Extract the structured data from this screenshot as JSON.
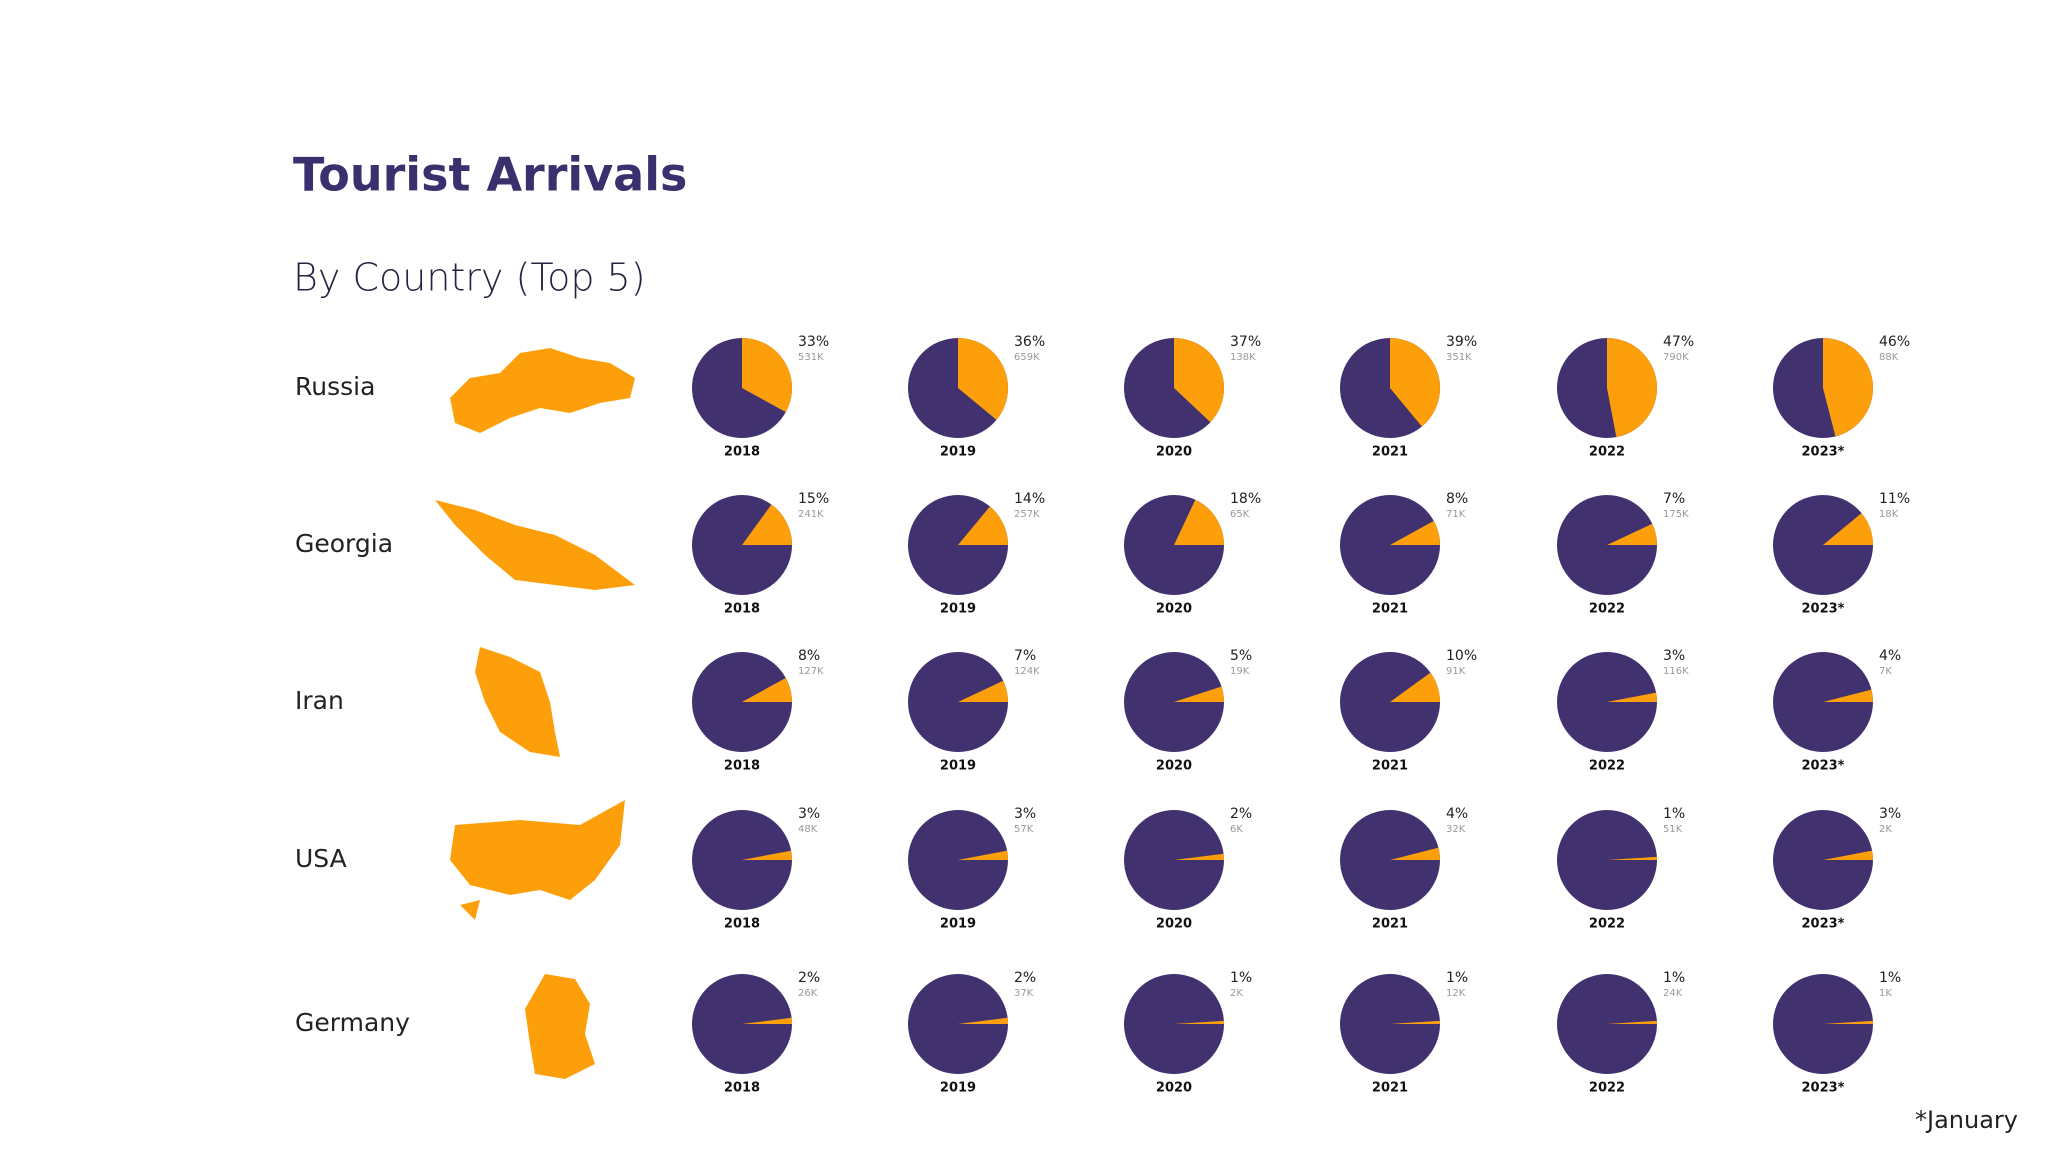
{
  "title": "Tourist Arrivals",
  "subtitle": "By Country (Top 5)",
  "footnote": "*January",
  "chart_data": [
    {
      "type": "pie",
      "name": "Russia",
      "categories": [
        "2018",
        "2019",
        "2020",
        "2021",
        "2022",
        "2023*"
      ],
      "values": [
        33,
        36,
        37,
        39,
        47,
        46
      ],
      "value_labels": [
        "33%",
        "36%",
        "37%",
        "39%",
        "47%",
        "46%"
      ],
      "arrivals": [
        "531K",
        "659K",
        "138K",
        "351K",
        "790K",
        "88K"
      ],
      "color": "#fd9f0b",
      "base_color": "#41316f"
    },
    {
      "type": "pie",
      "name": "Georgia",
      "categories": [
        "2018",
        "2019",
        "2020",
        "2021",
        "2022",
        "2023*"
      ],
      "values": [
        15,
        14,
        18,
        8,
        7,
        11
      ],
      "value_labels": [
        "15%",
        "14%",
        "18%",
        "8%",
        "7%",
        "11%"
      ],
      "arrivals": [
        "241K",
        "257K",
        "65K",
        "71K",
        "175K",
        "18K"
      ],
      "color": "#fd9f0b",
      "base_color": "#41316f"
    },
    {
      "type": "pie",
      "name": "Iran",
      "categories": [
        "2018",
        "2019",
        "2020",
        "2021",
        "2022",
        "2023*"
      ],
      "values": [
        8,
        7,
        5,
        10,
        3,
        4
      ],
      "value_labels": [
        "8%",
        "7%",
        "5%",
        "10%",
        "3%",
        "4%"
      ],
      "arrivals": [
        "127K",
        "124K",
        "19K",
        "91K",
        "116K",
        "7K"
      ],
      "color": "#fd9f0b",
      "base_color": "#41316f"
    },
    {
      "type": "pie",
      "name": "USA",
      "categories": [
        "2018",
        "2019",
        "2020",
        "2021",
        "2022",
        "2023*"
      ],
      "values": [
        3,
        3,
        2,
        4,
        1,
        3
      ],
      "value_labels": [
        "3%",
        "3%",
        "2%",
        "4%",
        "1%",
        "3%"
      ],
      "arrivals": [
        "48K",
        "57K",
        "6K",
        "32K",
        "51K",
        "2K"
      ],
      "color": "#fd9f0b",
      "base_color": "#41316f"
    },
    {
      "type": "pie",
      "name": "Germany",
      "categories": [
        "2018",
        "2019",
        "2020",
        "2021",
        "2022",
        "2023*"
      ],
      "values": [
        2,
        2,
        1,
        1,
        1,
        1
      ],
      "value_labels": [
        "2%",
        "2%",
        "1%",
        "1%",
        "1%",
        "1%"
      ],
      "arrivals": [
        "26K",
        "37K",
        "2K",
        "12K",
        "24K",
        "1K"
      ],
      "color": "#fd9f0b",
      "base_color": "#41316f"
    }
  ]
}
